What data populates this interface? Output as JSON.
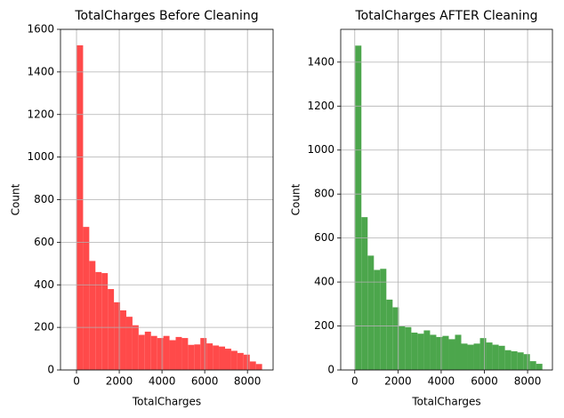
{
  "chart_data": [
    {
      "type": "histogram",
      "title": "TotalCharges Before Cleaning",
      "xlabel": "TotalCharges",
      "ylabel": "Count",
      "bins": [
        18.8,
        307.7,
        596.5,
        885.4,
        1174.3,
        1463.1,
        1752,
        2040.9,
        2329.7,
        2618.6,
        2907.5,
        3196.3,
        3485.2,
        3774.1,
        4062.9,
        4351.8,
        4640.7,
        4929.5,
        5218.4,
        5507.3,
        5796.1,
        6085,
        6373.9,
        6662.7,
        6951.6,
        7240.5,
        7529.3,
        7818.2,
        8107.1,
        8395.9,
        8684.8
      ],
      "values": [
        1525,
        672,
        512,
        460,
        455,
        380,
        318,
        280,
        250,
        210,
        165,
        180,
        160,
        150,
        160,
        140,
        155,
        150,
        118,
        120,
        150,
        125,
        115,
        110,
        100,
        90,
        80,
        72,
        40,
        28
      ],
      "color": "#ff4a4a",
      "xlim": [
        -750,
        9200
      ],
      "ylim": [
        0,
        1600
      ],
      "xticks": [
        0,
        2000,
        4000,
        6000,
        8000
      ],
      "yticks": [
        0,
        200,
        400,
        600,
        800,
        1000,
        1200,
        1400,
        1600
      ],
      "grid": true
    },
    {
      "type": "histogram",
      "title": "TotalCharges AFTER Cleaning",
      "xlabel": "TotalCharges",
      "ylabel": "Count",
      "bins": [
        18.8,
        307.7,
        596.5,
        885.4,
        1174.3,
        1463.1,
        1752,
        2040.9,
        2329.7,
        2618.6,
        2907.5,
        3196.3,
        3485.2,
        3774.1,
        4062.9,
        4351.8,
        4640.7,
        4929.5,
        5218.4,
        5507.3,
        5796.1,
        6085,
        6373.9,
        6662.7,
        6951.6,
        7240.5,
        7529.3,
        7818.2,
        8107.1,
        8395.9,
        8684.8
      ],
      "values": [
        1475,
        695,
        520,
        455,
        460,
        320,
        285,
        200,
        195,
        170,
        165,
        180,
        160,
        150,
        155,
        140,
        160,
        120,
        115,
        120,
        145,
        125,
        115,
        110,
        90,
        85,
        80,
        72,
        40,
        28
      ],
      "color": "#4ca64c",
      "xlim": [
        -650,
        9150
      ],
      "ylim": [
        0,
        1549
      ],
      "xticks": [
        0,
        2000,
        4000,
        6000,
        8000
      ],
      "yticks": [
        0,
        200,
        400,
        600,
        800,
        1000,
        1200,
        1400
      ],
      "grid": true
    }
  ]
}
